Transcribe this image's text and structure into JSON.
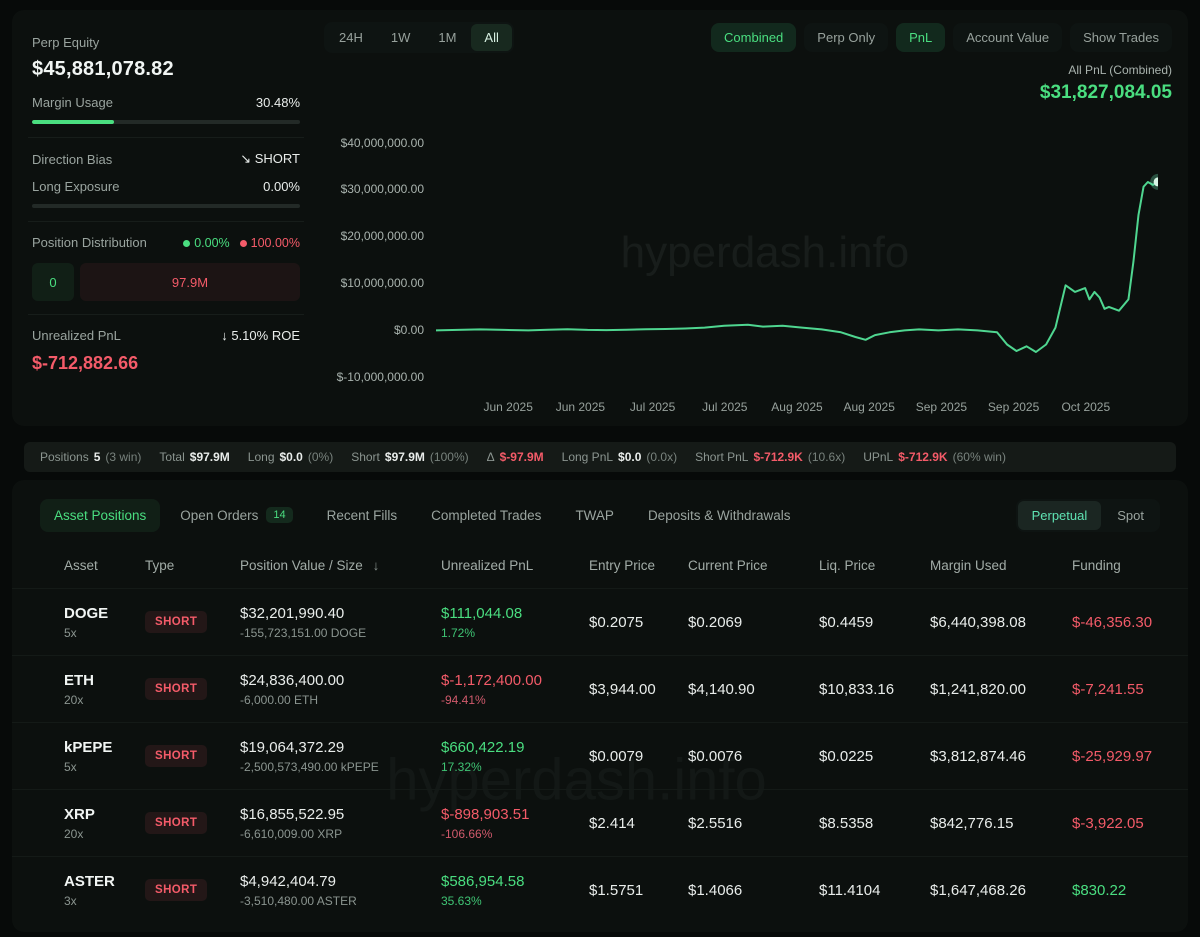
{
  "colors": {
    "green": "#4ade80",
    "red": "#f45b69",
    "line": "#4fd690"
  },
  "watermark": "hyperdash.info",
  "summary": {
    "perp_equity": {
      "label": "Perp Equity",
      "value": "$45,881,078.82"
    },
    "margin_usage": {
      "label": "Margin Usage",
      "value": "30.48%",
      "pct": 30.48
    },
    "direction_bias": {
      "label": "Direction Bias",
      "arrow_icon": "↘",
      "value": "SHORT"
    },
    "long_exposure": {
      "label": "Long Exposure",
      "value": "0.00%",
      "pct": 0
    },
    "position_distribution": {
      "label": "Position Distribution",
      "long_pct": "0.00%",
      "short_pct": "100.00%",
      "long_box": "0",
      "short_box": "97.9M"
    },
    "unrealized_pnl": {
      "label": "Unrealized PnL",
      "arrow_icon": "↓",
      "roe": "5.10% ROE",
      "value": "$-712,882.66"
    }
  },
  "chart_header": {
    "ranges": [
      {
        "label": "24H",
        "active": false
      },
      {
        "label": "1W",
        "active": false
      },
      {
        "label": "1M",
        "active": false
      },
      {
        "label": "All",
        "active": true
      }
    ],
    "modes": [
      {
        "label": "Combined",
        "active": true
      },
      {
        "label": "Perp Only",
        "active": false
      },
      {
        "label": "PnL",
        "active": true
      },
      {
        "label": "Account Value",
        "active": false
      },
      {
        "label": "Show Trades",
        "active": false
      }
    ],
    "readout_label": "All PnL (Combined)",
    "readout_value": "$31,827,084.05"
  },
  "chart_data": {
    "type": "line",
    "title": "All PnL (Combined)",
    "legend_position": "none",
    "grid": false,
    "ylim_millions": [
      -12.5,
      48
    ],
    "y_ticks": [
      {
        "value_m": 40,
        "label": "$40,000,000.00"
      },
      {
        "value_m": 30,
        "label": "$30,000,000.00"
      },
      {
        "value_m": 20,
        "label": "$20,000,000.00"
      },
      {
        "value_m": 10,
        "label": "$10,000,000.00"
      },
      {
        "value_m": 0,
        "label": "$0.00"
      },
      {
        "value_m": -10,
        "label": "$-10,000,000.00"
      }
    ],
    "x_ticks": [
      "Jun 2025",
      "Jun 2025",
      "Jul 2025",
      "Jul 2025",
      "Aug 2025",
      "Aug 2025",
      "Sep 2025",
      "Sep 2025",
      "Oct 2025"
    ],
    "series": [
      {
        "name": "All PnL (Combined)",
        "unit": "USD millions",
        "final_value": "$31,827,084.05",
        "points": [
          [
            0.0,
            0.2
          ],
          [
            0.03,
            0.3
          ],
          [
            0.061,
            0.4
          ],
          [
            0.095,
            0.3
          ],
          [
            0.128,
            0.2
          ],
          [
            0.155,
            0.35
          ],
          [
            0.182,
            0.45
          ],
          [
            0.21,
            0.3
          ],
          [
            0.236,
            0.25
          ],
          [
            0.264,
            0.35
          ],
          [
            0.291,
            0.45
          ],
          [
            0.318,
            0.5
          ],
          [
            0.345,
            0.6
          ],
          [
            0.372,
            0.8
          ],
          [
            0.399,
            1.2
          ],
          [
            0.432,
            1.4
          ],
          [
            0.453,
            1.0
          ],
          [
            0.48,
            1.2
          ],
          [
            0.507,
            0.8
          ],
          [
            0.534,
            0.4
          ],
          [
            0.561,
            -0.2
          ],
          [
            0.581,
            -1.2
          ],
          [
            0.595,
            -1.8
          ],
          [
            0.608,
            -0.8
          ],
          [
            0.628,
            -0.2
          ],
          [
            0.649,
            0.2
          ],
          [
            0.669,
            0.4
          ],
          [
            0.696,
            0.2
          ],
          [
            0.723,
            0.4
          ],
          [
            0.75,
            0.2
          ],
          [
            0.777,
            -0.2
          ],
          [
            0.791,
            -2.8
          ],
          [
            0.804,
            -4.2
          ],
          [
            0.818,
            -3.2
          ],
          [
            0.831,
            -4.4
          ],
          [
            0.845,
            -2.8
          ],
          [
            0.858,
            0.8
          ],
          [
            0.872,
            9.8
          ],
          [
            0.885,
            8.4
          ],
          [
            0.899,
            9.2
          ],
          [
            0.905,
            6.8
          ],
          [
            0.912,
            8.4
          ],
          [
            0.919,
            7.2
          ],
          [
            0.926,
            4.8
          ],
          [
            0.932,
            5.2
          ],
          [
            0.946,
            4.4
          ],
          [
            0.959,
            6.8
          ],
          [
            0.966,
            14.8
          ],
          [
            0.973,
            24.8
          ],
          [
            0.98,
            30.8
          ],
          [
            0.986,
            31.8
          ],
          [
            0.993,
            31.2
          ],
          [
            1.0,
            31.83
          ]
        ]
      }
    ]
  },
  "stats_bar": {
    "items": [
      {
        "label": "Positions",
        "value": "5",
        "suffix": "(3 win)",
        "color": "white"
      },
      {
        "label": "Total",
        "value": "$97.9M",
        "suffix": "",
        "color": "white"
      },
      {
        "label": "Long",
        "value": "$0.0",
        "suffix": "(0%)",
        "color": "white"
      },
      {
        "label": "Short",
        "value": "$97.9M",
        "suffix": "(100%)",
        "color": "white"
      },
      {
        "label": "Δ",
        "value": "$-97.9M",
        "suffix": "",
        "color": "red"
      },
      {
        "label": "Long PnL",
        "value": "$0.0",
        "suffix": "(0.0x)",
        "color": "white"
      },
      {
        "label": "Short PnL",
        "value": "$-712.9K",
        "suffix": "(10.6x)",
        "color": "red"
      },
      {
        "label": "UPnL",
        "value": "$-712.9K",
        "suffix": "(60% win)",
        "color": "red"
      }
    ]
  },
  "tabs": {
    "left": [
      {
        "label": "Asset Positions",
        "active": true
      },
      {
        "label": "Open Orders",
        "active": false,
        "badge": "14"
      },
      {
        "label": "Recent Fills",
        "active": false
      },
      {
        "label": "Completed Trades",
        "active": false
      },
      {
        "label": "TWAP",
        "active": false
      },
      {
        "label": "Deposits & Withdrawals",
        "active": false
      }
    ],
    "right": [
      {
        "label": "Perpetual",
        "active": true
      },
      {
        "label": "Spot",
        "active": false
      }
    ]
  },
  "table": {
    "headers": [
      "Asset",
      "Type",
      "Position Value / Size",
      "Unrealized PnL",
      "Entry Price",
      "Current Price",
      "Liq. Price",
      "Margin Used",
      "Funding"
    ],
    "sort_column_index": 2,
    "sort_icon": "↓",
    "rows": [
      {
        "asset": "DOGE",
        "leverage": "5x",
        "type": "SHORT",
        "value": "$32,201,990.40",
        "size": "-155,723,151.00 DOGE",
        "upnl": "$111,044.08",
        "upnl_pct": "1.72%",
        "upnl_dir": "pos",
        "entry": "$0.2075",
        "current": "$0.2069",
        "liq": "$0.4459",
        "margin": "$6,440,398.08",
        "funding": "$-46,356.30",
        "funding_dir": "neg"
      },
      {
        "asset": "ETH",
        "leverage": "20x",
        "type": "SHORT",
        "value": "$24,836,400.00",
        "size": "-6,000.00 ETH",
        "upnl": "$-1,172,400.00",
        "upnl_pct": "-94.41%",
        "upnl_dir": "neg",
        "entry": "$3,944.00",
        "current": "$4,140.90",
        "liq": "$10,833.16",
        "margin": "$1,241,820.00",
        "funding": "$-7,241.55",
        "funding_dir": "neg"
      },
      {
        "asset": "kPEPE",
        "leverage": "5x",
        "type": "SHORT",
        "value": "$19,064,372.29",
        "size": "-2,500,573,490.00 kPEPE",
        "upnl": "$660,422.19",
        "upnl_pct": "17.32%",
        "upnl_dir": "pos",
        "entry": "$0.0079",
        "current": "$0.0076",
        "liq": "$0.0225",
        "margin": "$3,812,874.46",
        "funding": "$-25,929.97",
        "funding_dir": "neg"
      },
      {
        "asset": "XRP",
        "leverage": "20x",
        "type": "SHORT",
        "value": "$16,855,522.95",
        "size": "-6,610,009.00 XRP",
        "upnl": "$-898,903.51",
        "upnl_pct": "-106.66%",
        "upnl_dir": "neg",
        "entry": "$2.414",
        "current": "$2.5516",
        "liq": "$8.5358",
        "margin": "$842,776.15",
        "funding": "$-3,922.05",
        "funding_dir": "neg"
      },
      {
        "asset": "ASTER",
        "leverage": "3x",
        "type": "SHORT",
        "value": "$4,942,404.79",
        "size": "-3,510,480.00 ASTER",
        "upnl": "$586,954.58",
        "upnl_pct": "35.63%",
        "upnl_dir": "pos",
        "entry": "$1.5751",
        "current": "$1.4066",
        "liq": "$11.4104",
        "margin": "$1,647,468.26",
        "funding": "$830.22",
        "funding_dir": "pos"
      }
    ]
  }
}
